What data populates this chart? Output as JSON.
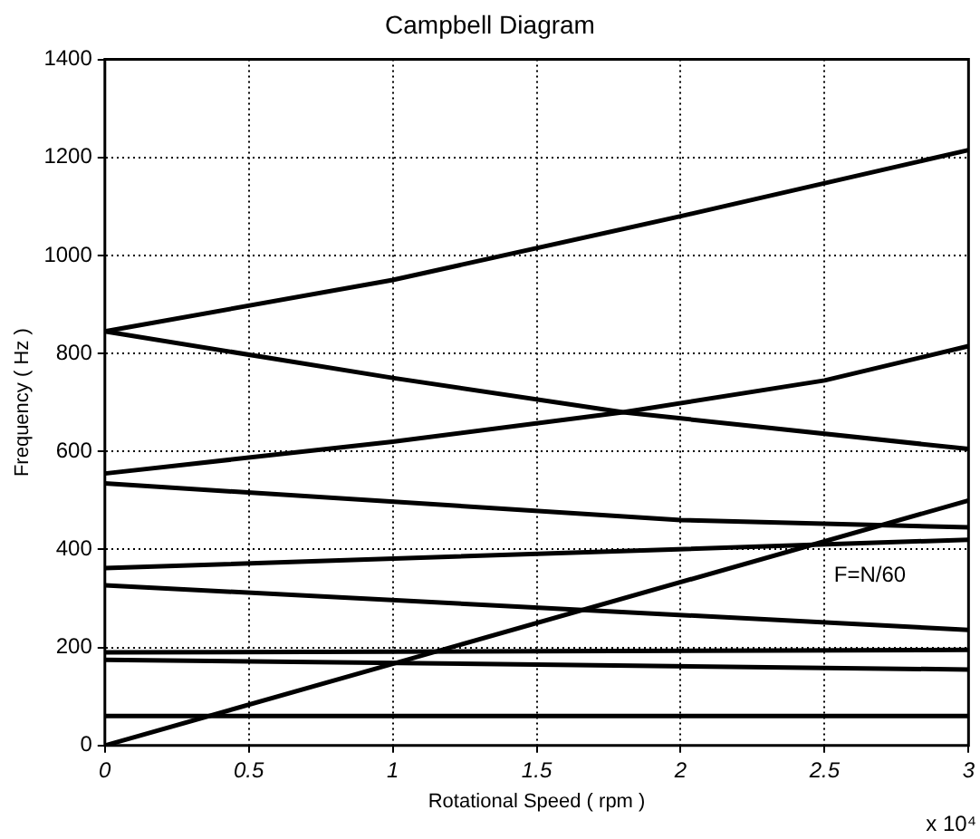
{
  "chart_data": {
    "type": "line",
    "title": "Campbell Diagram",
    "xlabel": "Rotational Speed ( rpm )",
    "ylabel": "Frequency ( Hz )",
    "xlim": [
      0,
      3
    ],
    "xticks": [
      0,
      0.5,
      1,
      1.5,
      2,
      2.5,
      3
    ],
    "ylim": [
      0,
      1400
    ],
    "yticks": [
      0,
      200,
      400,
      600,
      800,
      1000,
      1200,
      1400
    ],
    "grid": true,
    "legend": false,
    "marker": "none",
    "line_style": "solid",
    "annotations": [
      "x 10⁴"
    ],
    "series": [
      {
        "color": "#000000",
        "x": [
          0,
          1,
          2,
          3
        ],
        "values": [
          845,
          950,
          1080,
          1215
        ]
      },
      {
        "color": "#000000",
        "x": [
          0,
          1,
          1.8,
          3
        ],
        "values": [
          845,
          750,
          680,
          605
        ]
      },
      {
        "color": "#000000",
        "x": [
          0,
          1,
          1.8,
          2.5,
          3
        ],
        "values": [
          555,
          620,
          680,
          745,
          815
        ]
      },
      {
        "color": "#000000",
        "x": [
          0,
          2,
          3
        ],
        "values": [
          535,
          460,
          445
        ]
      },
      {
        "color": "#000000",
        "x": [
          0,
          3
        ],
        "values": [
          362,
          420
        ]
      },
      {
        "color": "#000000",
        "x": [
          0,
          3
        ],
        "values": [
          327,
          236
        ]
      },
      {
        "name": "F=N/60",
        "color": "#000000",
        "x": [
          0,
          3
        ],
        "values": [
          0,
          500
        ]
      },
      {
        "color": "#000000",
        "x": [
          0,
          3
        ],
        "values": [
          190,
          195
        ]
      },
      {
        "color": "#000000",
        "x": [
          0,
          3
        ],
        "values": [
          175,
          155
        ]
      },
      {
        "color": "#000000",
        "x": [
          0,
          3
        ],
        "values": [
          60,
          60
        ]
      }
    ]
  }
}
